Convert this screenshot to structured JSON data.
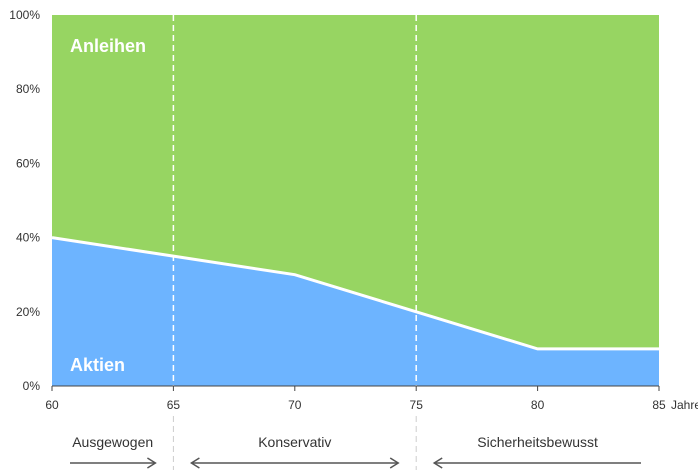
{
  "chart_data": {
    "type": "area",
    "x": [
      60,
      65,
      70,
      75,
      80,
      85
    ],
    "series": [
      {
        "name": "Aktien",
        "values": [
          40,
          35,
          30,
          20,
          10,
          10
        ],
        "color": "#6db4ff"
      },
      {
        "name": "Anleihen",
        "values": [
          60,
          65,
          70,
          80,
          90,
          90
        ],
        "color": "#97d562"
      }
    ],
    "stacked": true,
    "xlim": [
      60,
      85
    ],
    "ylim": [
      0,
      100
    ],
    "x_ticks": [
      "60",
      "65",
      "70",
      "75",
      "80",
      "85"
    ],
    "x_unit": "Jahre",
    "y_ticks": [
      "0%",
      "20%",
      "40%",
      "60%",
      "80%",
      "100%"
    ],
    "dividers_x": [
      65,
      75
    ],
    "phases": [
      {
        "label": "Ausgewogen",
        "from": 60,
        "to": 65,
        "arrow_left": false,
        "arrow_right": true
      },
      {
        "label": "Konservativ",
        "from": 65,
        "to": 75,
        "arrow_left": true,
        "arrow_right": true
      },
      {
        "label": "Sicherheitsbewusst",
        "from": 75,
        "to": 85,
        "arrow_left": true,
        "arrow_right": false
      }
    ],
    "colors": {
      "line": "#ffffff",
      "divider": "#ffffff",
      "axis": "#444444",
      "arrow": "#555555",
      "divider_below": "#cccccc"
    }
  }
}
